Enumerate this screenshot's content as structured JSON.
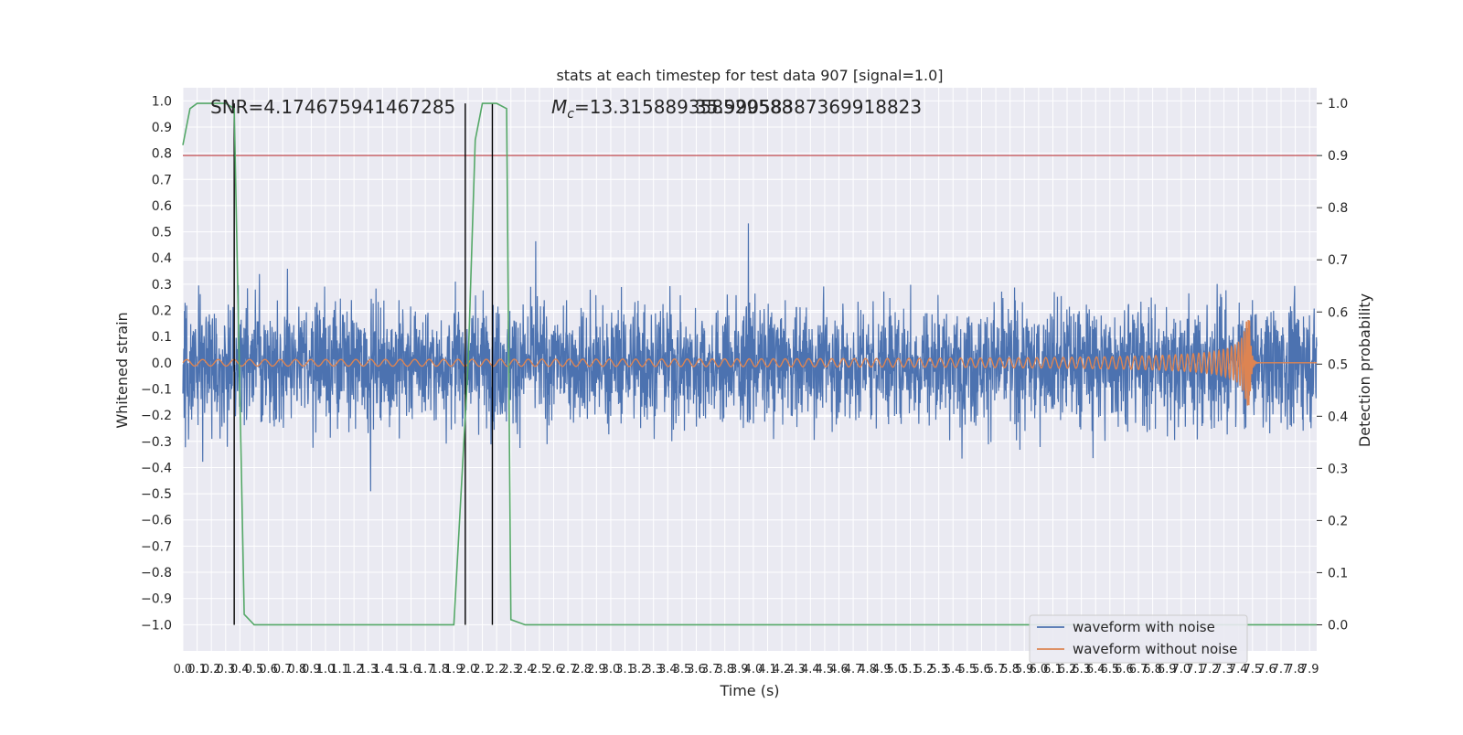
{
  "chart_data": {
    "type": "line",
    "title": "stats at each timestep for test data 907 [signal=1.0]",
    "xlabel": "Time (s)",
    "ylabel": "Whitened strain",
    "y2label": "Detection probability",
    "xlim": [
      0.0,
      7.95
    ],
    "ylim": [
      -1.1,
      1.05
    ],
    "y2lim": [
      -0.05,
      1.03
    ],
    "grid": true,
    "legend_position": "lower-right",
    "x_tick_labels": [
      "0.0",
      "0.1",
      "0.2",
      "0.3",
      "0.4",
      "0.5",
      "0.6",
      "0.7",
      "0.8",
      "0.9",
      "1.0",
      "1.1",
      "1.2",
      "1.3",
      "1.4",
      "1.5",
      "1.6",
      "1.7",
      "1.8",
      "1.9",
      "2.0",
      "2.1",
      "2.2",
      "2.3",
      "2.4",
      "2.5",
      "2.6",
      "2.7",
      "2.8",
      "2.9",
      "3.0",
      "3.1",
      "3.2",
      "3.3",
      "3.4",
      "3.5",
      "3.6",
      "3.7",
      "3.8",
      "3.9",
      "4.0",
      "4.1",
      "4.2",
      "4.3",
      "4.4",
      "4.5",
      "4.6",
      "4.7",
      "4.8",
      "4.9",
      "5.0",
      "5.1",
      "5.2",
      "5.3",
      "5.4",
      "5.5",
      "5.6",
      "5.7",
      "5.8",
      "5.9",
      "6.0",
      "6.1",
      "6.2",
      "6.3",
      "6.4",
      "6.5",
      "6.6",
      "6.7",
      "6.8",
      "6.9",
      "7.0",
      "7.1",
      "7.2",
      "7.3",
      "7.4",
      "7.5",
      "7.6",
      "7.7",
      "7.8",
      "7.9"
    ],
    "y_tick_labels": [
      "1.0",
      "0.9",
      "0.8",
      "0.7",
      "0.6",
      "0.5",
      "0.4",
      "0.3",
      "0.2",
      "0.1",
      "0.0",
      "-0.1",
      "-0.2",
      "-0.3",
      "-0.4",
      "-0.5",
      "-0.6",
      "-0.7",
      "-0.8",
      "-0.9",
      "-1.0"
    ],
    "y2_tick_labels": [
      "1.0",
      "0.9",
      "0.8",
      "0.7",
      "0.6",
      "0.5",
      "0.4",
      "0.3",
      "0.2",
      "0.1",
      "0.0"
    ],
    "annotations": {
      "snr": "SNR=4.174675941467285",
      "mc_prefix": "M",
      "mc_sub": "c",
      "mc_value": "=13.315889358529588",
      "mc_overlap": "35.99058387369918823"
    },
    "series": [
      {
        "name": "waveform with noise",
        "color": "#4c72b0",
        "amplitude_range": [
          -1.0,
          1.0
        ]
      },
      {
        "name": "waveform without noise",
        "color": "#dd8452",
        "peak_time": 7.48,
        "peak_amplitude": 0.17
      },
      {
        "color": "#55a868",
        "axis": "right",
        "x": [
          0.0,
          0.05,
          0.1,
          0.15,
          0.2,
          0.25,
          0.3,
          0.36,
          0.43,
          0.5,
          0.6,
          0.8,
          1.2,
          1.6,
          1.9,
          1.96,
          2.0,
          2.05,
          2.1,
          2.15,
          2.2,
          2.27,
          2.3,
          2.4,
          2.6,
          3.3,
          4.0,
          5.0,
          6.0,
          7.0,
          7.95
        ],
        "y": [
          0.92,
          0.99,
          1.0,
          1.0,
          1.0,
          1.0,
          1.0,
          0.99,
          0.02,
          0.0,
          0.0,
          0.0,
          0.0,
          0.0,
          0.0,
          0.3,
          0.5,
          0.93,
          1.0,
          1.0,
          1.0,
          0.99,
          0.01,
          0.0,
          0.0,
          0.0,
          0.0,
          0.0,
          0.0,
          0.0,
          0.0
        ]
      }
    ],
    "horizontal_lines": [
      {
        "y2": 0.9,
        "color": "#c44e52"
      },
      {
        "y2": 0.7,
        "color": "#ffffff"
      },
      {
        "y2": 0.6,
        "color": "#ffffff"
      },
      {
        "y2": 0.5,
        "color": "#ffffff"
      },
      {
        "y2": 0.4,
        "color": "#ffffff"
      }
    ],
    "vertical_lines": [
      {
        "x": 0.36,
        "color": "#000000"
      },
      {
        "x": 1.98,
        "color": "#000000"
      },
      {
        "x": 2.17,
        "color": "#000000"
      }
    ]
  }
}
